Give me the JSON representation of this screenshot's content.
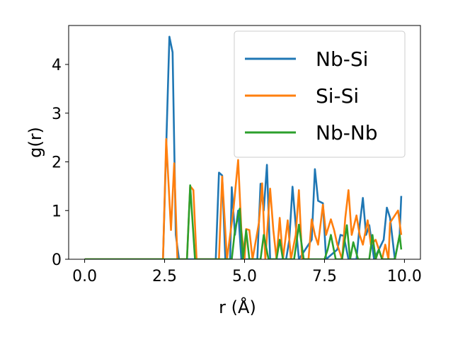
{
  "chart_data": {
    "type": "line",
    "xlabel": "r (Å)",
    "ylabel": "g(r)",
    "xlim": [
      -0.5,
      10.5
    ],
    "ylim": [
      0,
      4.8
    ],
    "xticks": [
      0.0,
      2.5,
      5.0,
      7.5,
      10.0
    ],
    "xtick_labels": [
      "0.0",
      "2.5",
      "5.0",
      "7.5",
      "10.0"
    ],
    "yticks": [
      0,
      1,
      2,
      3,
      4
    ],
    "ytick_labels": [
      "0",
      "1",
      "2",
      "3",
      "4"
    ],
    "grid": false,
    "legend_position": "top-right",
    "series": [
      {
        "name": "Nb-Si",
        "color": "#1f77b4",
        "points": [
          [
            0.0,
            0
          ],
          [
            2.45,
            0
          ],
          [
            2.55,
            2.3
          ],
          [
            2.65,
            4.57
          ],
          [
            2.75,
            4.25
          ],
          [
            2.85,
            0.5
          ],
          [
            2.95,
            0
          ],
          [
            4.1,
            0
          ],
          [
            4.2,
            1.78
          ],
          [
            4.3,
            1.72
          ],
          [
            4.4,
            0
          ],
          [
            4.55,
            0
          ],
          [
            4.6,
            1.48
          ],
          [
            4.7,
            0.5
          ],
          [
            4.8,
            1.0
          ],
          [
            4.9,
            0
          ],
          [
            5.4,
            0
          ],
          [
            5.5,
            1.55
          ],
          [
            5.6,
            1.0
          ],
          [
            5.7,
            1.94
          ],
          [
            5.8,
            0
          ],
          [
            6.3,
            0
          ],
          [
            6.4,
            0.4
          ],
          [
            6.5,
            1.49
          ],
          [
            6.6,
            0.7
          ],
          [
            6.7,
            0
          ],
          [
            7.1,
            0.4
          ],
          [
            7.2,
            1.85
          ],
          [
            7.3,
            1.2
          ],
          [
            7.45,
            1.15
          ],
          [
            7.55,
            0
          ],
          [
            7.9,
            0.2
          ],
          [
            8.0,
            0.5
          ],
          [
            8.1,
            0.48
          ],
          [
            8.25,
            0
          ],
          [
            8.5,
            0
          ],
          [
            8.6,
            0.7
          ],
          [
            8.7,
            1.26
          ],
          [
            8.8,
            0.5
          ],
          [
            8.9,
            0.7
          ],
          [
            9.05,
            0
          ],
          [
            9.35,
            0.4
          ],
          [
            9.45,
            1.06
          ],
          [
            9.55,
            0.85
          ],
          [
            9.7,
            0
          ],
          [
            9.85,
            0.5
          ],
          [
            9.9,
            1.3
          ]
        ]
      },
      {
        "name": "Si-Si",
        "color": "#ff7f0e",
        "points": [
          [
            0.0,
            0
          ],
          [
            2.45,
            0
          ],
          [
            2.55,
            2.47
          ],
          [
            2.7,
            0.6
          ],
          [
            2.8,
            1.97
          ],
          [
            2.9,
            0
          ],
          [
            3.2,
            0
          ],
          [
            3.3,
            1.5
          ],
          [
            3.4,
            1.42
          ],
          [
            3.5,
            0
          ],
          [
            4.2,
            0
          ],
          [
            4.3,
            1.7
          ],
          [
            4.45,
            0
          ],
          [
            4.65,
            1.0
          ],
          [
            4.8,
            2.04
          ],
          [
            4.9,
            0.6
          ],
          [
            5.0,
            0
          ],
          [
            5.05,
            0.62
          ],
          [
            5.15,
            0.6
          ],
          [
            5.25,
            0
          ],
          [
            5.45,
            0.75
          ],
          [
            5.55,
            1.56
          ],
          [
            5.65,
            0
          ],
          [
            5.8,
            1.45
          ],
          [
            5.9,
            0.6
          ],
          [
            6.0,
            0
          ],
          [
            6.1,
            0.85
          ],
          [
            6.2,
            0
          ],
          [
            6.35,
            0.8
          ],
          [
            6.45,
            0
          ],
          [
            6.6,
            0.5
          ],
          [
            6.7,
            1.42
          ],
          [
            6.8,
            0
          ],
          [
            7.0,
            0
          ],
          [
            7.1,
            0.82
          ],
          [
            7.2,
            0.5
          ],
          [
            7.3,
            0.3
          ],
          [
            7.45,
            1.12
          ],
          [
            7.55,
            0.5
          ],
          [
            7.7,
            0.82
          ],
          [
            7.8,
            0.6
          ],
          [
            7.9,
            0.3
          ],
          [
            8.05,
            0
          ],
          [
            8.15,
            0.85
          ],
          [
            8.25,
            1.42
          ],
          [
            8.35,
            0.5
          ],
          [
            8.5,
            0.9
          ],
          [
            8.6,
            0.5
          ],
          [
            8.7,
            0.3
          ],
          [
            8.85,
            0.8
          ],
          [
            8.95,
            0.3
          ],
          [
            9.1,
            0.4
          ],
          [
            9.2,
            0.2
          ],
          [
            9.3,
            0
          ],
          [
            9.4,
            0.3
          ],
          [
            9.5,
            0
          ],
          [
            9.55,
            0.75
          ],
          [
            9.7,
            0.9
          ],
          [
            9.8,
            1.0
          ],
          [
            9.9,
            0.5
          ]
        ]
      },
      {
        "name": "Nb-Nb",
        "color": "#2ca02c",
        "points": [
          [
            0.0,
            0
          ],
          [
            3.2,
            0
          ],
          [
            3.3,
            1.52
          ],
          [
            3.45,
            0
          ],
          [
            4.6,
            0
          ],
          [
            4.7,
            0.6
          ],
          [
            4.85,
            1.04
          ],
          [
            4.95,
            0
          ],
          [
            5.05,
            0.6
          ],
          [
            5.15,
            0
          ],
          [
            5.5,
            0
          ],
          [
            5.6,
            0.5
          ],
          [
            5.75,
            0
          ],
          [
            6.0,
            0
          ],
          [
            6.1,
            0.4
          ],
          [
            6.2,
            0
          ],
          [
            6.55,
            0
          ],
          [
            6.7,
            0.71
          ],
          [
            6.85,
            0
          ],
          [
            7.5,
            0
          ],
          [
            7.6,
            0.2
          ],
          [
            7.7,
            0.5
          ],
          [
            7.85,
            0
          ],
          [
            8.05,
            0
          ],
          [
            8.2,
            0.7
          ],
          [
            8.3,
            0
          ],
          [
            8.4,
            0.35
          ],
          [
            8.55,
            0
          ],
          [
            8.9,
            0
          ],
          [
            9.0,
            0.5
          ],
          [
            9.1,
            0
          ],
          [
            9.2,
            0.2
          ],
          [
            9.3,
            0
          ],
          [
            9.7,
            0
          ],
          [
            9.85,
            0.5
          ],
          [
            9.9,
            0.2
          ]
        ]
      }
    ]
  }
}
